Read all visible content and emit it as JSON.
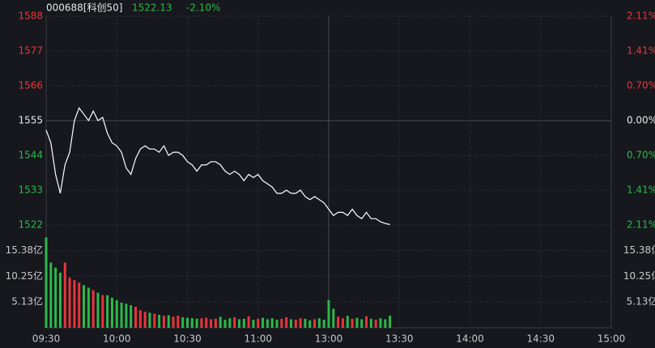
{
  "chart_data": [
    {
      "type": "line",
      "title": "000688[科创50]",
      "price_label": "1522.13",
      "change_label": "-2.10%",
      "x": [
        0,
        2,
        4,
        6,
        8,
        10,
        12,
        14,
        16,
        18,
        20,
        22,
        24,
        26,
        28,
        30,
        32,
        34,
        36,
        38,
        40,
        42,
        44,
        46,
        48,
        50,
        52,
        54,
        56,
        58,
        60,
        62,
        64,
        66,
        68,
        70,
        72,
        74,
        76,
        78,
        80,
        82,
        84,
        86,
        88,
        90,
        92,
        94,
        96,
        98,
        100,
        102,
        104,
        106,
        108,
        110,
        112,
        114,
        116,
        118,
        120,
        122,
        124,
        126,
        128,
        130,
        132,
        134,
        136,
        138,
        140,
        142,
        144,
        146
      ],
      "xlim": [
        0,
        240
      ],
      "xticks": [
        {
          "value": 0,
          "label": "09:30"
        },
        {
          "value": 30,
          "label": "10:00"
        },
        {
          "value": 60,
          "label": "10:30"
        },
        {
          "value": 90,
          "label": "11:00"
        },
        {
          "value": 120,
          "label": "13:00"
        },
        {
          "value": 150,
          "label": "13:30"
        },
        {
          "value": 180,
          "label": "14:00"
        },
        {
          "value": 210,
          "label": "14:30"
        },
        {
          "value": 240,
          "label": "15:00"
        }
      ],
      "series": [
        {
          "color": "#ffffff",
          "values": [
            1552,
            1548,
            1538,
            1532,
            1541,
            1545,
            1555,
            1559,
            1557,
            1555,
            1558,
            1555,
            1556,
            1551,
            1548,
            1547,
            1545,
            1540,
            1538,
            1543,
            1546,
            1547,
            1546,
            1546,
            1545,
            1547,
            1544,
            1545,
            1545,
            1544,
            1542,
            1541,
            1539,
            1541,
            1541,
            1542,
            1542,
            1541,
            1539,
            1538,
            1539,
            1538,
            1536,
            1538,
            1537,
            1538,
            1536,
            1535,
            1534,
            1532,
            1532,
            1533,
            1532,
            1532,
            1533,
            1531,
            1530,
            1531,
            1530,
            1529,
            1527,
            1525,
            1526,
            1526,
            1525,
            1527,
            1525,
            1524,
            1526,
            1524,
            1524,
            1523,
            1522.5,
            1522.13
          ]
        }
      ],
      "ylim": [
        1522,
        1588
      ],
      "yticks": [
        1588,
        1577,
        1566,
        1555,
        1544,
        1533,
        1522
      ],
      "y2lim": [
        -2.11,
        2.11
      ],
      "y2ticks": [
        {
          "value": 2.11,
          "label": "2.11%"
        },
        {
          "value": 1.41,
          "label": "1.41%"
        },
        {
          "value": 0.7,
          "label": "0.70%"
        },
        {
          "value": 0,
          "label": "0.00%"
        },
        {
          "value": -0.7,
          "label": "0.70%"
        },
        {
          "value": -1.41,
          "label": "1.41%"
        },
        {
          "value": -2.11,
          "label": "2.11%"
        }
      ],
      "up_color": "#e8353c",
      "down_color": "#2eb84a",
      "grid": true
    },
    {
      "type": "bar",
      "values": [
        18,
        13,
        12,
        11,
        13,
        10,
        9.5,
        9,
        8.5,
        8,
        7.5,
        7,
        6.5,
        6.5,
        6,
        5.5,
        5,
        4.8,
        4.5,
        4.2,
        3.5,
        3.2,
        3,
        2.8,
        2.6,
        2.4,
        2.5,
        2.2,
        2.4,
        2.1,
        2,
        1.9,
        1.8,
        1.9,
        2,
        1.7,
        1.8,
        2.2,
        1.6,
        1.9,
        2.1,
        1.7,
        1.8,
        2.3,
        1.6,
        1.8,
        2,
        1.7,
        1.9,
        1.6,
        1.8,
        2.1,
        1.7,
        1.6,
        1.9,
        1.8,
        1.5,
        1.7,
        1.9,
        1.6,
        5.5,
        3.8,
        2.2,
        1.9,
        2.4,
        1.8,
        2,
        1.7,
        2.3,
        1.8,
        1.6,
        1.9,
        1.7,
        2.4
      ],
      "ylim": [
        0,
        20.5
      ],
      "yticks": [
        {
          "value": 15.38,
          "label": "15.38亿"
        },
        {
          "value": 10.25,
          "label": "10.25亿"
        },
        {
          "value": 5.13,
          "label": "5.13亿"
        }
      ]
    }
  ]
}
